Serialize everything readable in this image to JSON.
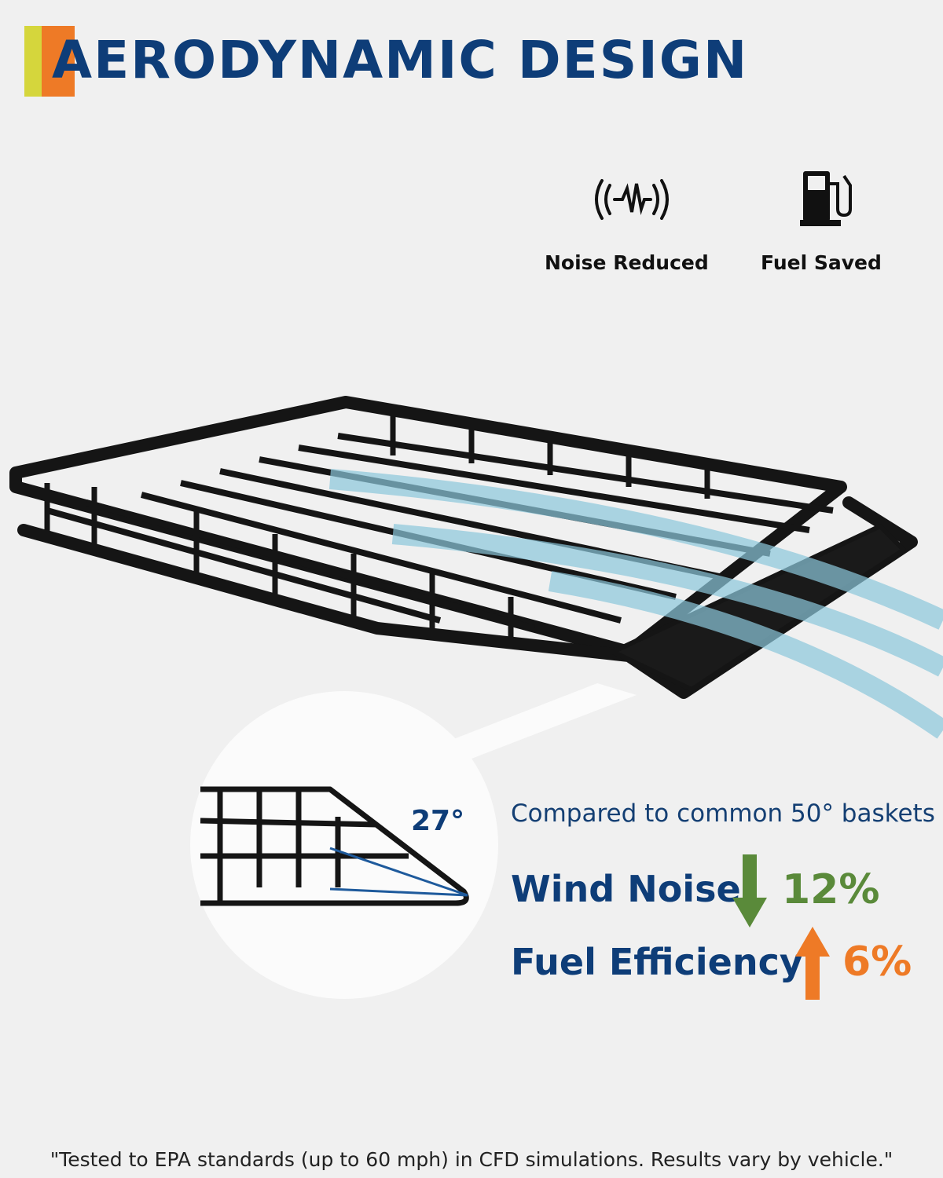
{
  "title": "AERODYNAMIC DESIGN",
  "colors": {
    "brand_blue": "#0e3d78",
    "accent_orange": "#ee7a26",
    "accent_yellow": "#d5d63c",
    "down_green": "#5a8a3a",
    "up_orange": "#ee7a26",
    "airflow": "#8cc8dc"
  },
  "features": [
    {
      "icon": "sound-wave-icon",
      "label": "Noise Reduced"
    },
    {
      "icon": "fuel-pump-icon",
      "label": "Fuel Saved"
    }
  ],
  "detail": {
    "angle": "27°"
  },
  "comparison": {
    "caption": "Compared to common 50° baskets",
    "metrics": [
      {
        "label": "Wind Noise",
        "direction": "down",
        "value": "12%",
        "icon": "arrow-down-icon"
      },
      {
        "label": "Fuel Efficiency",
        "direction": "up",
        "value": "6%",
        "icon": "arrow-up-icon"
      }
    ]
  },
  "footnote": "\"Tested to EPA standards (up to 60 mph) in CFD simulations. Results vary by vehicle.\""
}
